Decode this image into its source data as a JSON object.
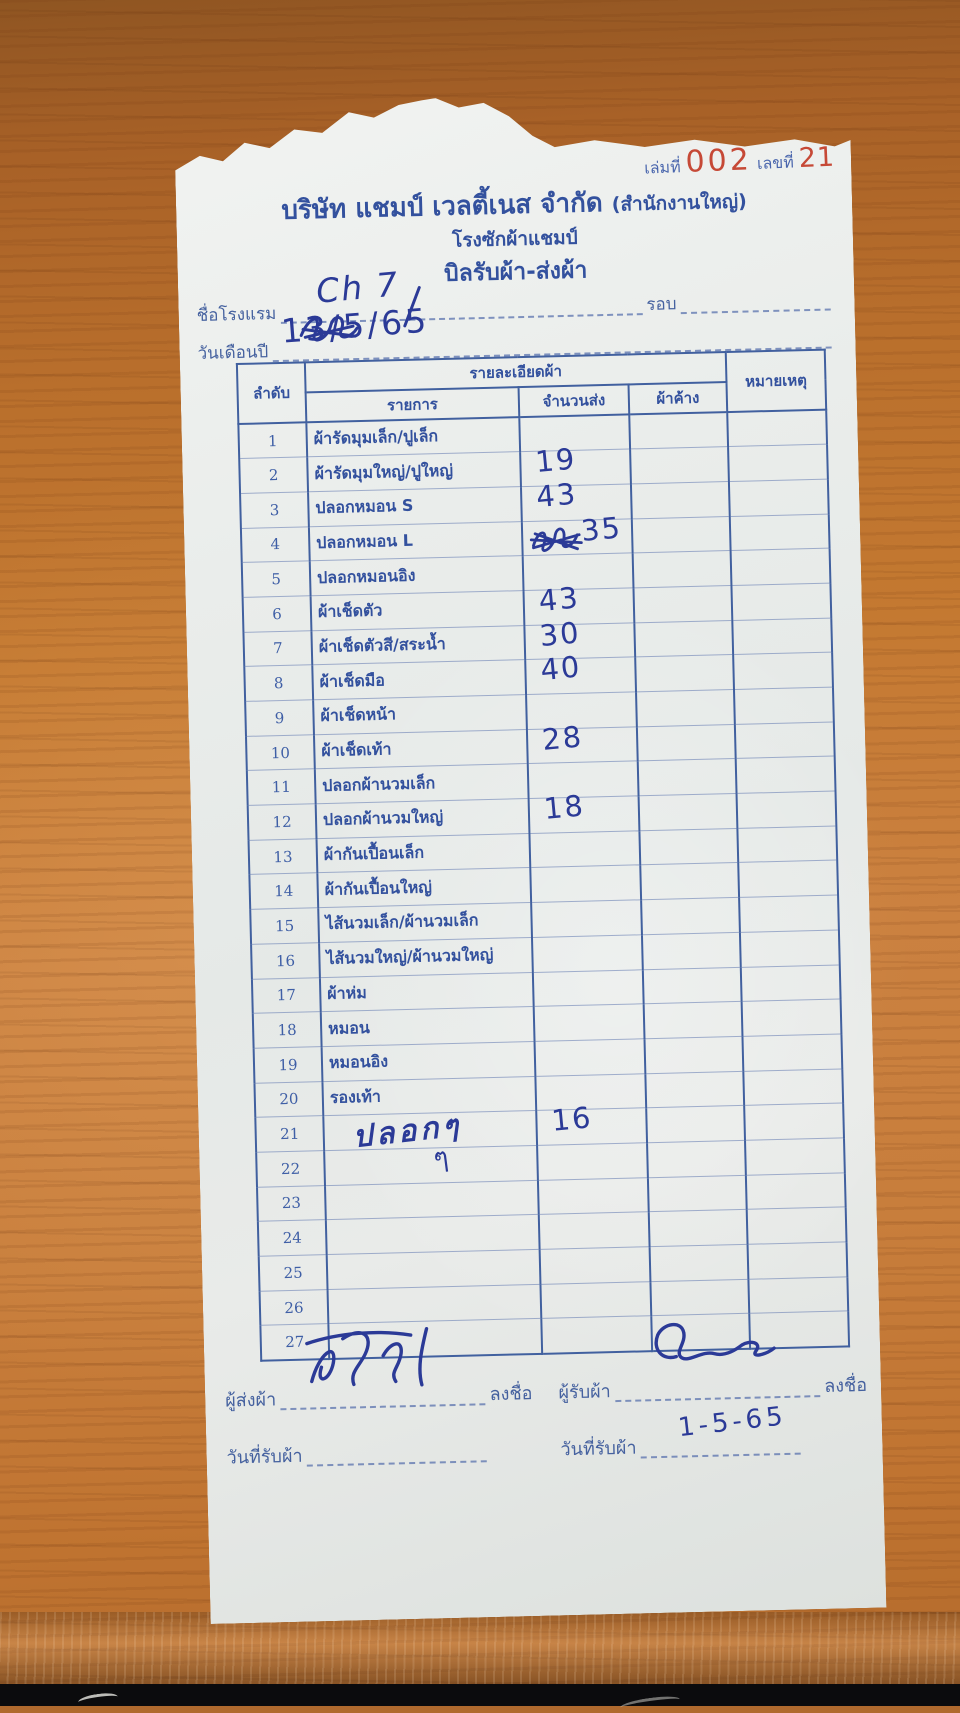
{
  "stamp": {
    "book_label": "เล่มที่",
    "book_number": "002",
    "no_label": "เลขที่",
    "no_value": "21",
    "number_color": "#c64936",
    "label_color": "#4a66ad"
  },
  "header": {
    "company": "บริษัท แชมป์ เวลตี้เนส จำกัด",
    "company_suffix": "(สำนักงานใหญ่)",
    "branch": "โรงซักผ้าแชมป์",
    "title": "บิลรับผ้า-ส่งผ้า"
  },
  "fields": {
    "hotel_label": "ชื่อโรงแรม",
    "hotel_value_handwritten": "Ch 7",
    "round_label": "รอบ",
    "round_value": "",
    "date_label": "วันเดือนปี",
    "date_value_handwritten": "13/5/65",
    "date_has_scribble": true
  },
  "table": {
    "headers": {
      "no": "ลำดับ",
      "detail_group": "รายละเอียดผ้า",
      "item": "รายการ",
      "qty_sent": "จำนวนส่ง",
      "qty_pending": "ผ้าค้าง",
      "remark": "หมายเหตุ"
    },
    "hand_below_21": "ๆ",
    "rows": [
      {
        "no": "1",
        "item": "ผ้ารัดมุมเล็ก/ปูเล็ก",
        "qty": "",
        "pending": "",
        "remark": ""
      },
      {
        "no": "2",
        "item": "ผ้ารัดมุมใหญ่/ปูใหญ่",
        "qty": "19",
        "pending": "",
        "remark": ""
      },
      {
        "no": "3",
        "item": "ปลอกหมอน S",
        "qty": "43",
        "pending": "",
        "remark": ""
      },
      {
        "no": "4",
        "item": "ปลอกหมอน L",
        "qty": "35",
        "qty_scribble": true,
        "pending": "",
        "remark": ""
      },
      {
        "no": "5",
        "item": "ปลอกหมอนอิง",
        "qty": "",
        "pending": "",
        "remark": ""
      },
      {
        "no": "6",
        "item": "ผ้าเช็ดตัว",
        "qty": "43",
        "pending": "",
        "remark": ""
      },
      {
        "no": "7",
        "item": "ผ้าเช็ดตัวสี/สระน้ำ",
        "qty": "30",
        "pending": "",
        "remark": ""
      },
      {
        "no": "8",
        "item": "ผ้าเช็ดมือ",
        "qty": "40",
        "pending": "",
        "remark": ""
      },
      {
        "no": "9",
        "item": "ผ้าเช็ดหน้า",
        "qty": "",
        "pending": "",
        "remark": ""
      },
      {
        "no": "10",
        "item": "ผ้าเช็ดเท้า",
        "qty": "28",
        "pending": "",
        "remark": ""
      },
      {
        "no": "11",
        "item": "ปลอกผ้านวมเล็ก",
        "qty": "",
        "pending": "",
        "remark": ""
      },
      {
        "no": "12",
        "item": "ปลอกผ้านวมใหญ่",
        "qty": "18",
        "pending": "",
        "remark": ""
      },
      {
        "no": "13",
        "item": "ผ้ากันเปื้อนเล็ก",
        "qty": "",
        "pending": "",
        "remark": ""
      },
      {
        "no": "14",
        "item": "ผ้ากันเปื้อนใหญ่",
        "qty": "",
        "pending": "",
        "remark": ""
      },
      {
        "no": "15",
        "item": "ไส้นวมเล็ก/ผ้านวมเล็ก",
        "qty": "",
        "pending": "",
        "remark": ""
      },
      {
        "no": "16",
        "item": "ไส้นวมใหญ่/ผ้านวมใหญ่",
        "qty": "",
        "pending": "",
        "remark": ""
      },
      {
        "no": "17",
        "item": "ผ้าห่ม",
        "qty": "",
        "pending": "",
        "remark": ""
      },
      {
        "no": "18",
        "item": "หมอน",
        "qty": "",
        "pending": "",
        "remark": ""
      },
      {
        "no": "19",
        "item": "หมอนอิง",
        "qty": "",
        "pending": "",
        "remark": ""
      },
      {
        "no": "20",
        "item": "รองเท้า",
        "qty": "",
        "pending": "",
        "remark": ""
      },
      {
        "no": "21",
        "item": "",
        "item_pen": "ปลอกๆ",
        "qty": "16",
        "pending": "",
        "remark": ""
      },
      {
        "no": "22",
        "item": "",
        "qty": "",
        "pending": "",
        "remark": ""
      },
      {
        "no": "23",
        "item": "",
        "qty": "",
        "pending": "",
        "remark": ""
      },
      {
        "no": "24",
        "item": "",
        "qty": "",
        "pending": "",
        "remark": ""
      },
      {
        "no": "25",
        "item": "",
        "qty": "",
        "pending": "",
        "remark": ""
      },
      {
        "no": "26",
        "item": "",
        "qty": "",
        "pending": "",
        "remark": ""
      },
      {
        "no": "27",
        "item": "",
        "qty": "",
        "pending": "",
        "remark": ""
      }
    ]
  },
  "footer": {
    "sender_label": "ผู้ส่งผ้า",
    "sign_label_left": "ลงชื่อ",
    "receiver_label": "ผู้รับผ้า",
    "sign_label_right": "ลงชื่อ",
    "date_received_label_left": "วันที่รับผ้า",
    "date_received_value_left": "",
    "date_received_label_right": "วันที่รับผ้า",
    "date_received_value_right": "1-5-65"
  },
  "colors": {
    "print_blue": "#33519e",
    "pen_ink": "#2b3a97",
    "stamp_red": "#c64936",
    "paper": "#eaedeb",
    "wood": "#c47931"
  }
}
